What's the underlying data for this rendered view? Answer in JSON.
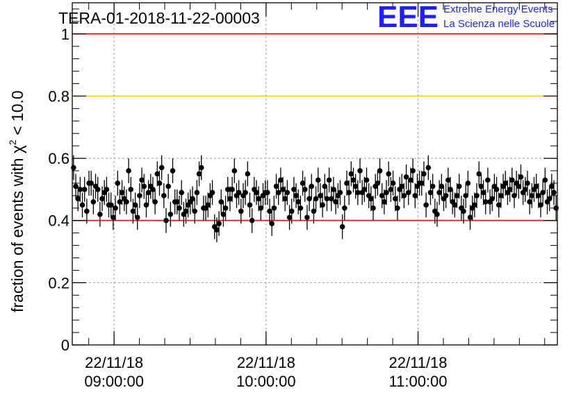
{
  "chart_data": {
    "type": "scatter",
    "title": "TERA-01-2018-11-22-00003",
    "ylabel": "fraction of events with χ² < 10.0",
    "ylabel_main": "fraction of events with ",
    "ylabel_chi": "χ",
    "ylabel_sup": "2",
    "ylabel_tail": " < 10.0",
    "ylim": [
      0,
      1.1
    ],
    "y_ticks": [
      {
        "value": 0,
        "label": "0"
      },
      {
        "value": 0.2,
        "label": "0.2"
      },
      {
        "value": 0.4,
        "label": "0.4"
      },
      {
        "value": 0.6,
        "label": "0.6"
      },
      {
        "value": 0.8,
        "label": "0.8"
      },
      {
        "value": 1.0,
        "label": "1"
      }
    ],
    "x_ticks": [
      {
        "time": "22/11/18 09:00:00",
        "date": "22/11/18",
        "clock": "09:00:00",
        "value": 540
      },
      {
        "time": "22/11/18 10:00:00",
        "date": "22/11/18",
        "clock": "10:00:00",
        "value": 600
      },
      {
        "time": "22/11/18 11:00:00",
        "date": "22/11/18",
        "clock": "11:00:00",
        "value": 660
      }
    ],
    "xlim_minutes_of_day": [
      523.5,
      715
    ],
    "grid": true,
    "reference_lines": [
      {
        "y": 1.0,
        "color": "#ff0000"
      },
      {
        "y": 0.8,
        "color": "#ffcc00"
      },
      {
        "y": 0.4,
        "color": "#ff0000"
      }
    ],
    "marker_color": "#000000",
    "error_bar": 0.04,
    "series": [
      {
        "values": [
          0.57,
          0.51,
          0.47,
          0.5,
          0.45,
          0.5,
          0.43,
          0.52,
          0.52,
          0.46,
          0.51,
          0.5,
          0.42,
          0.47,
          0.49,
          0.5,
          0.45,
          0.45,
          0.41,
          0.44,
          0.52,
          0.46,
          0.49,
          0.47,
          0.46,
          0.56,
          0.5,
          0.43,
          0.45,
          0.41,
          0.48,
          0.53,
          0.51,
          0.45,
          0.49,
          0.51,
          0.5,
          0.46,
          0.55,
          0.52,
          0.57,
          0.48,
          0.4,
          0.51,
          0.42,
          0.56,
          0.46,
          0.46,
          0.44,
          0.49,
          0.42,
          0.43,
          0.45,
          0.46,
          0.47,
          0.43,
          0.49,
          0.55,
          0.57,
          0.44,
          0.44,
          0.45,
          0.48,
          0.49,
          0.38,
          0.37,
          0.39,
          0.46,
          0.42,
          0.44,
          0.5,
          0.47,
          0.5,
          0.56,
          0.48,
          0.49,
          0.43,
          0.48,
          0.49,
          0.55,
          0.45,
          0.4,
          0.5,
          0.49,
          0.47,
          0.44,
          0.48,
          0.49,
          0.49,
          0.43,
          0.39,
          0.44,
          0.51,
          0.49,
          0.53,
          0.5,
          0.47,
          0.49,
          0.41,
          0.43,
          0.5,
          0.48,
          0.46,
          0.44,
          0.52,
          0.5,
          0.41,
          0.47,
          0.51,
          0.43,
          0.47,
          0.53,
          0.48,
          0.45,
          0.51,
          0.47,
          0.53,
          0.47,
          0.5,
          0.46,
          0.48,
          0.49,
          0.38,
          0.44,
          0.52,
          0.49,
          0.55,
          0.53,
          0.51,
          0.49,
          0.56,
          0.49,
          0.5,
          0.53,
          0.48,
          0.47,
          0.44,
          0.51,
          0.52,
          0.56,
          0.48,
          0.46,
          0.49,
          0.55,
          0.5,
          0.52,
          0.47,
          0.44,
          0.5,
          0.51,
          0.48,
          0.54,
          0.49,
          0.53,
          0.56,
          0.48,
          0.51,
          0.52,
          0.52,
          0.55,
          0.45,
          0.57,
          0.49,
          0.51,
          0.43,
          0.42,
          0.49,
          0.51,
          0.47,
          0.48,
          0.53,
          0.5,
          0.46,
          0.45,
          0.48,
          0.51,
          0.44,
          0.43,
          0.48,
          0.52,
          0.41,
          0.44,
          0.45,
          0.48,
          0.55,
          0.51,
          0.49,
          0.46,
          0.53,
          0.46,
          0.47,
          0.51,
          0.5,
          0.45,
          0.48,
          0.51,
          0.52,
          0.49,
          0.5,
          0.53,
          0.48,
          0.52,
          0.51,
          0.54,
          0.49,
          0.5,
          0.52,
          0.46,
          0.48,
          0.5,
          0.51,
          0.48,
          0.45,
          0.49,
          0.53,
          0.46,
          0.47,
          0.51,
          0.49,
          0.44
        ]
      }
    ]
  },
  "logo": {
    "mark": "EEE",
    "line1": "Extreme Energy Events",
    "line2": "La Scienza nelle Scuole",
    "color": "#1e1eff"
  }
}
